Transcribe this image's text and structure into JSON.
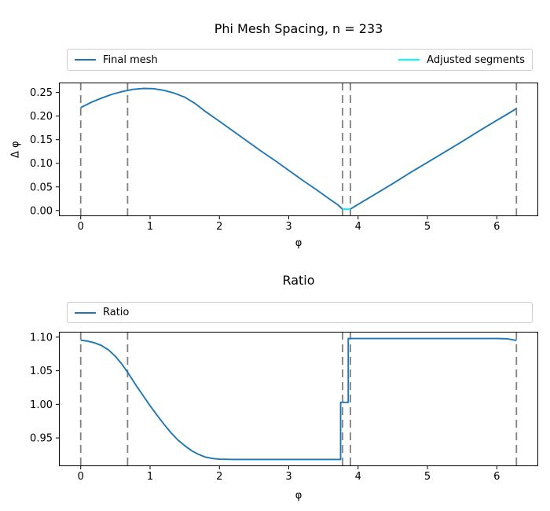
{
  "figure": {
    "background": "#ffffff"
  },
  "colors": {
    "series_blue": "#1f77b4",
    "series_cyan": "#00ffff",
    "vline_gray": "#808080",
    "axes_frame": "#000000",
    "legend_border": "#cccccc"
  },
  "chart_data": [
    {
      "type": "line",
      "title": "Phi Mesh Spacing, n = 233",
      "xlabel": "φ",
      "ylabel": "Δ φ",
      "xlim": [
        -0.314,
        6.597
      ],
      "ylim": [
        -0.012,
        0.271
      ],
      "grid": false,
      "xticks": [
        0,
        1,
        2,
        3,
        4,
        5,
        6
      ],
      "xtick_labels": [
        "0",
        "1",
        "2",
        "3",
        "4",
        "5",
        "6"
      ],
      "yticks": [
        0.0,
        0.05,
        0.1,
        0.15,
        0.2,
        0.25
      ],
      "ytick_labels": [
        "0.00",
        "0.05",
        "0.10",
        "0.15",
        "0.20",
        "0.25"
      ],
      "vlines": {
        "positions": [
          0,
          0.676,
          3.776,
          3.889,
          6.283
        ],
        "style": "dashed",
        "color": "#808080"
      },
      "legend": {
        "position": "above-expanded",
        "entries": [
          {
            "label": "Final mesh",
            "color": "#1f77b4"
          },
          {
            "label": "Adjusted segments",
            "color": "#00ffff"
          }
        ]
      },
      "series": [
        {
          "name": "Final mesh",
          "color": "#1f77b4",
          "x": [
            0,
            0.15,
            0.3,
            0.45,
            0.6,
            0.75,
            0.9,
            1.05,
            1.2,
            1.35,
            1.5,
            1.65,
            1.8,
            2.0,
            2.2,
            2.4,
            2.6,
            2.8,
            3.0,
            3.2,
            3.4,
            3.6,
            3.7,
            3.776,
            3.889,
            4.0,
            4.25,
            4.5,
            4.75,
            5.0,
            5.25,
            5.5,
            5.75,
            6.0,
            6.15,
            6.283
          ],
          "y": [
            0.218,
            0.229,
            0.238,
            0.246,
            0.252,
            0.2565,
            0.2585,
            0.258,
            0.2545,
            0.2485,
            0.24,
            0.2265,
            0.2095,
            0.189,
            0.168,
            0.147,
            0.126,
            0.106,
            0.085,
            0.064,
            0.044,
            0.023,
            0.013,
            0.003,
            0.003,
            0.013,
            0.035,
            0.057,
            0.08,
            0.102,
            0.124,
            0.146,
            0.169,
            0.191,
            0.204,
            0.216
          ]
        },
        {
          "name": "Adjusted segments",
          "color": "#00ffff",
          "x": [
            3.776,
            3.889
          ],
          "y": [
            0.003,
            0.003
          ]
        }
      ]
    },
    {
      "type": "line",
      "title": "Ratio",
      "xlabel": "φ",
      "ylabel": "",
      "xlim": [
        -0.314,
        6.597
      ],
      "ylim": [
        0.908,
        1.108
      ],
      "grid": false,
      "xticks": [
        0,
        1,
        2,
        3,
        4,
        5,
        6
      ],
      "xtick_labels": [
        "0",
        "1",
        "2",
        "3",
        "4",
        "5",
        "6"
      ],
      "yticks": [
        0.95,
        1.0,
        1.05,
        1.1
      ],
      "ytick_labels": [
        "0.95",
        "1.00",
        "1.05",
        "1.10"
      ],
      "vlines": {
        "positions": [
          0,
          0.676,
          3.776,
          3.889,
          6.283
        ],
        "style": "dashed",
        "color": "#808080"
      },
      "legend": {
        "position": "above-expanded",
        "entries": [
          {
            "label": "Ratio",
            "color": "#1f77b4"
          }
        ]
      },
      "series": [
        {
          "name": "Ratio",
          "color": "#1f77b4",
          "x": [
            0,
            0.1,
            0.2,
            0.3,
            0.4,
            0.5,
            0.6,
            0.7,
            0.8,
            0.9,
            1.0,
            1.1,
            1.2,
            1.3,
            1.4,
            1.5,
            1.6,
            1.7,
            1.8,
            1.9,
            2.0,
            2.2,
            2.6,
            3.0,
            3.4,
            3.748,
            3.748,
            3.858,
            3.858,
            4.0,
            4.5,
            5.0,
            5.5,
            6.0,
            6.15,
            6.283
          ],
          "y": [
            1.0955,
            1.094,
            1.0915,
            1.0875,
            1.081,
            1.0715,
            1.059,
            1.044,
            1.028,
            1.013,
            0.998,
            0.984,
            0.9705,
            0.958,
            0.947,
            0.9385,
            0.931,
            0.9255,
            0.9215,
            0.9195,
            0.9185,
            0.918,
            0.918,
            0.918,
            0.918,
            0.918,
            1.003,
            1.003,
            1.098,
            1.098,
            1.098,
            1.098,
            1.098,
            1.098,
            1.0975,
            1.095
          ]
        }
      ]
    }
  ]
}
